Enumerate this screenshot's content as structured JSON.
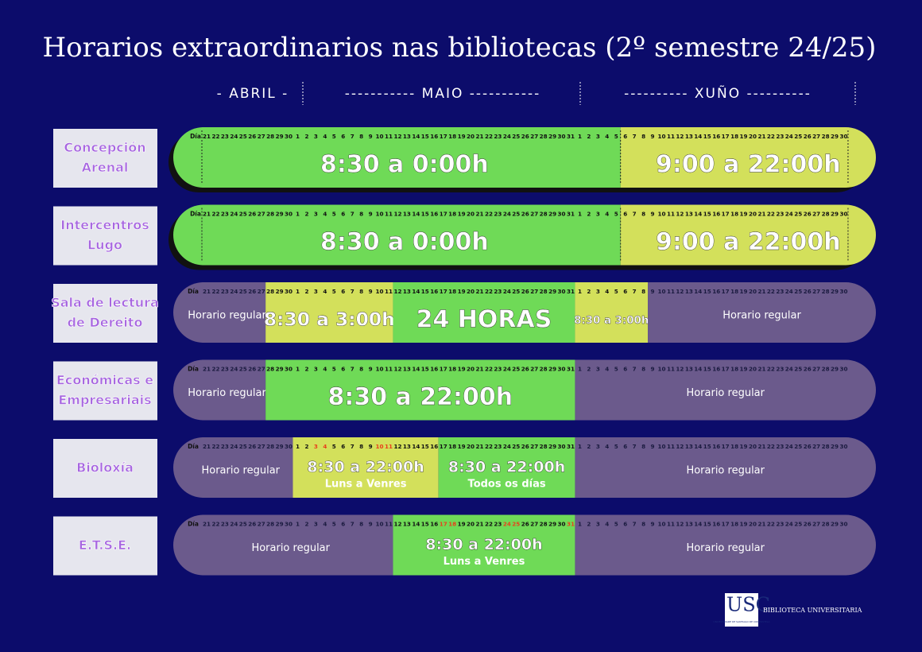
{
  "title": "Horarios extraordinarios nas bibliotecas (2º semestre 24/25)",
  "months": [
    "- ABRIL -",
    "----------- MAIO -----------",
    "---------- XUÑO ----------"
  ],
  "rows": [
    {
      "label": [
        "Concepción",
        "Arenal"
      ],
      "day_label": "Día",
      "segments": [
        {
          "color": "#6fda57",
          "text": "8:30 a 0:00h",
          "days": [
            21,
            22,
            23,
            24,
            25,
            26,
            27,
            28,
            29,
            30,
            1,
            2,
            3,
            4,
            5,
            6,
            7,
            8,
            9,
            10,
            11,
            12,
            13,
            14,
            15,
            16,
            17,
            18,
            19,
            20,
            21,
            22,
            23,
            24,
            25,
            26,
            27,
            28,
            29,
            30,
            31,
            1,
            2,
            3,
            4,
            5
          ]
        },
        {
          "color": "#d3e05b",
          "text": "9:00 a 22:00h",
          "days": [
            6,
            7,
            8,
            9,
            10,
            11,
            12,
            13,
            14,
            15,
            16,
            17,
            18,
            19,
            20,
            21,
            22,
            23,
            24,
            25,
            26,
            27,
            28,
            29,
            30
          ]
        }
      ]
    },
    {
      "label": [
        "Intercentros",
        "Lugo"
      ],
      "day_label": "Día",
      "segments": [
        {
          "color": "#6fda57",
          "text": "8:30 a 0:00h",
          "days": [
            21,
            22,
            23,
            24,
            25,
            26,
            27,
            28,
            29,
            30,
            1,
            2,
            3,
            4,
            5,
            6,
            7,
            8,
            9,
            10,
            11,
            12,
            13,
            14,
            15,
            16,
            17,
            18,
            19,
            20,
            21,
            22,
            23,
            24,
            25,
            26,
            27,
            28,
            29,
            30,
            31,
            1,
            2,
            3,
            4,
            5
          ]
        },
        {
          "color": "#d3e05b",
          "text": "9:00 a 22:00h",
          "days": [
            6,
            7,
            8,
            9,
            10,
            11,
            12,
            13,
            14,
            15,
            16,
            17,
            18,
            19,
            20,
            21,
            22,
            23,
            24,
            25,
            26,
            27,
            28,
            29,
            30
          ]
        }
      ]
    },
    {
      "label": [
        "Sala de lectura",
        "de Dereito"
      ],
      "day_label": "Día",
      "segments": [
        {
          "color": "#6b5a8c",
          "text": "Horario regular",
          "days": [
            21,
            22,
            23,
            24,
            25,
            26,
            27
          ]
        },
        {
          "color": "#d3e05b",
          "text": "8:30 a 3:00h",
          "days": [
            28,
            29,
            30,
            1,
            2,
            3,
            4,
            5,
            6,
            7,
            8,
            9,
            10,
            11
          ]
        },
        {
          "color": "#6fda57",
          "text": "24 HORAS",
          "days": [
            12,
            13,
            14,
            15,
            16,
            17,
            18,
            19,
            20,
            21,
            22,
            23,
            24,
            25,
            26,
            27,
            28,
            29,
            30,
            31
          ]
        },
        {
          "color": "#d3e05b",
          "text": "8:30 a 3:00h",
          "days": [
            1,
            2,
            3,
            4,
            5,
            6,
            7,
            8
          ]
        },
        {
          "color": "#6b5a8c",
          "text": "Horario regular",
          "days": [
            9,
            10,
            11,
            12,
            13,
            14,
            15,
            16,
            17,
            18,
            19,
            20,
            21,
            22,
            23,
            24,
            25,
            26,
            27,
            28,
            29,
            30
          ]
        }
      ]
    },
    {
      "label": [
        "Económicas e",
        "Empresariais"
      ],
      "day_label": "Día",
      "segments": [
        {
          "color": "#6b5a8c",
          "text": "Horario regular",
          "days": [
            21,
            22,
            23,
            24,
            25,
            26,
            27
          ]
        },
        {
          "color": "#6fda57",
          "text": "8:30 a 22:00h",
          "days": [
            28,
            29,
            30,
            1,
            2,
            3,
            4,
            5,
            6,
            7,
            8,
            9,
            10,
            11,
            12,
            13,
            14,
            15,
            16,
            17,
            18,
            19,
            20,
            21,
            22,
            23,
            24,
            25,
            26,
            27,
            28,
            29,
            30,
            31
          ]
        },
        {
          "color": "#6b5a8c",
          "text": "Horario regular",
          "days": [
            1,
            2,
            3,
            4,
            5,
            6,
            7,
            8,
            9,
            10,
            11,
            12,
            13,
            14,
            15,
            16,
            17,
            18,
            19,
            20,
            21,
            22,
            23,
            24,
            25,
            26,
            27,
            28,
            29,
            30
          ]
        }
      ]
    },
    {
      "label": [
        "Bioloxía"
      ],
      "day_label": "Día",
      "highlight": [
        3,
        4,
        10,
        11
      ],
      "segments": [
        {
          "color": "#6b5a8c",
          "text": "Horario regular",
          "days": [
            21,
            22,
            23,
            24,
            25,
            26,
            27,
            28,
            29,
            30
          ]
        },
        {
          "color": "#d3e05b",
          "text": "8:30 a 22:00h",
          "subtext": "Luns a Venres",
          "days": [
            1,
            2,
            3,
            4,
            5,
            6,
            7,
            8,
            9,
            10,
            11,
            12,
            13,
            14,
            15,
            16
          ]
        },
        {
          "color": "#6fda57",
          "text": "8:30 a 22:00h",
          "subtext": "Todos os días",
          "days": [
            17,
            18,
            19,
            20,
            21,
            22,
            23,
            24,
            25,
            26,
            27,
            28,
            29,
            30,
            31
          ]
        },
        {
          "color": "#6b5a8c",
          "text": "Horario regular",
          "days": [
            1,
            2,
            3,
            4,
            5,
            6,
            7,
            8,
            9,
            10,
            11,
            12,
            13,
            14,
            15,
            16,
            17,
            18,
            19,
            20,
            21,
            22,
            23,
            24,
            25,
            26,
            27,
            28,
            29,
            30
          ]
        }
      ]
    },
    {
      "label": [
        "E.T.S.E."
      ],
      "day_label": "Día",
      "highlight": [
        17,
        18,
        24,
        25,
        31
      ],
      "segments": [
        {
          "color": "#6b5a8c",
          "text": "Horario regular",
          "days": [
            21,
            22,
            23,
            24,
            25,
            26,
            27,
            28,
            29,
            30,
            1,
            2,
            3,
            4,
            5,
            6,
            7,
            8,
            9,
            10,
            11
          ]
        },
        {
          "color": "#6fda57",
          "text": "8:30 a 22:00h",
          "subtext": "Luns a Venres",
          "days": [
            12,
            13,
            14,
            15,
            16,
            17,
            18,
            19,
            20,
            21,
            22,
            23,
            24,
            25,
            26,
            27,
            28,
            29,
            30,
            31
          ]
        },
        {
          "color": "#6b5a8c",
          "text": "Horario regular",
          "days": [
            1,
            2,
            3,
            4,
            5,
            6,
            7,
            8,
            9,
            10,
            11,
            12,
            13,
            14,
            15,
            16,
            17,
            18,
            19,
            20,
            21,
            22,
            23,
            24,
            25,
            26,
            27,
            28,
            29,
            30
          ]
        }
      ]
    }
  ],
  "footer": {
    "logo": "USC",
    "logo_sub": "UNIVERSIDADE DE SANTIAGO DE COMPOSTELA",
    "name": "BIBLIOTECA UNIVERSITARIA"
  }
}
